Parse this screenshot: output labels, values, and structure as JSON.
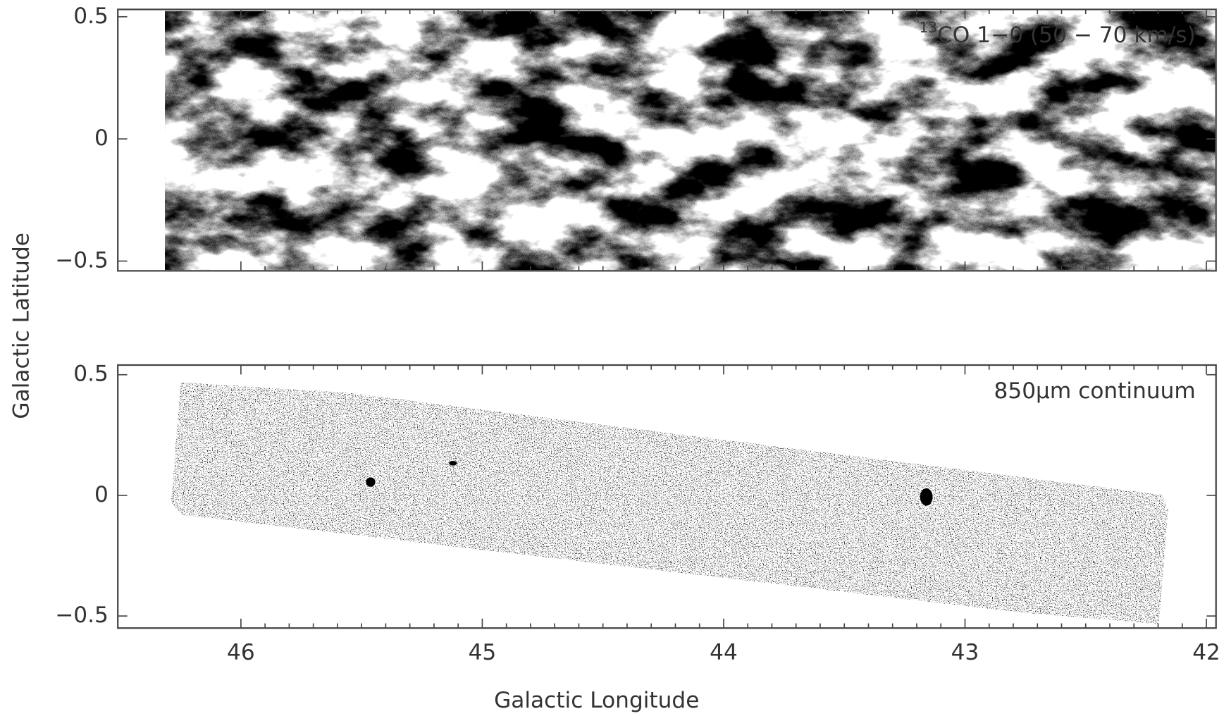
{
  "xlabel": "Galactic Longitude",
  "ylabel": "Galactic Latitude",
  "chart_data": [
    {
      "type": "image",
      "annotation_superscript": "13",
      "annotation": "CO 1−0 (50 − 70 km/s)",
      "xlim": [
        46.51,
        41.96
      ],
      "xticks": [
        46,
        45,
        44,
        43,
        42
      ],
      "ylim": [
        -0.54,
        0.53
      ],
      "yticks": [
        0.5,
        0,
        {
          "value": -0.5,
          "label": "−0.5"
        }
      ]
    },
    {
      "type": "image",
      "annotation": "850μm continuum",
      "xlim": [
        46.51,
        41.96
      ],
      "xticks": [
        46,
        45,
        44,
        43,
        42
      ],
      "ylim": [
        -0.55,
        0.54
      ],
      "yticks": [
        0.5,
        0,
        {
          "value": -0.5,
          "label": "−0.5"
        }
      ]
    }
  ]
}
